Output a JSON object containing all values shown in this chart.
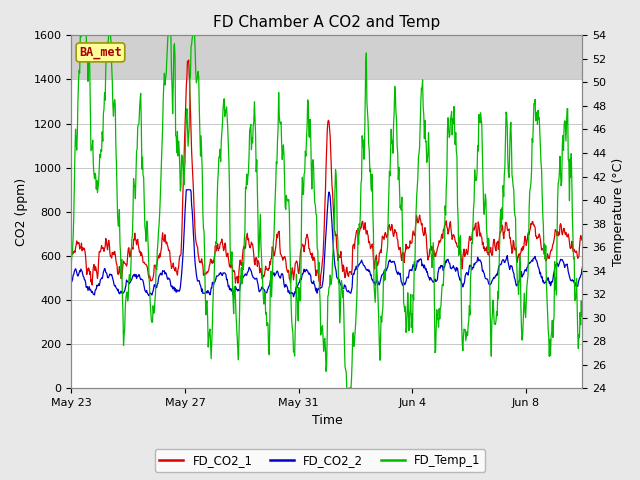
{
  "title": "FD Chamber A CO2 and Temp",
  "xlabel": "Time",
  "ylabel_left": "CO2 (ppm)",
  "ylabel_right": "Temperature (°C)",
  "ylim_left": [
    0,
    1600
  ],
  "ylim_right": [
    24,
    54
  ],
  "yticks_left": [
    0,
    200,
    400,
    600,
    800,
    1000,
    1200,
    1400,
    1600
  ],
  "yticks_right": [
    24,
    26,
    28,
    30,
    32,
    34,
    36,
    38,
    40,
    42,
    44,
    46,
    48,
    50,
    52,
    54
  ],
  "fig_bg_color": "#e8e8e8",
  "plot_bg_color": "#ffffff",
  "shade_top_color": "#d0d0d0",
  "shade_top_alpha": 1.0,
  "grid_color": "#c8c8c8",
  "badge_text": "BA_met",
  "badge_bg": "#ffff99",
  "badge_border": "#999900",
  "badge_text_color": "#aa0000",
  "line_co2_1_color": "#dd0000",
  "line_co2_2_color": "#0000cc",
  "line_temp_1_color": "#00bb00",
  "line_width": 0.9,
  "legend_labels": [
    "FD_CO2_1",
    "FD_CO2_2",
    "FD_Temp_1"
  ],
  "xtick_labels": [
    "May 23",
    "May 27",
    "May 31",
    "Jun 4",
    "Jun 8"
  ],
  "xtick_positions": [
    0,
    4,
    8,
    12,
    16
  ],
  "n_days": 18,
  "n_pts_per_day": 48
}
